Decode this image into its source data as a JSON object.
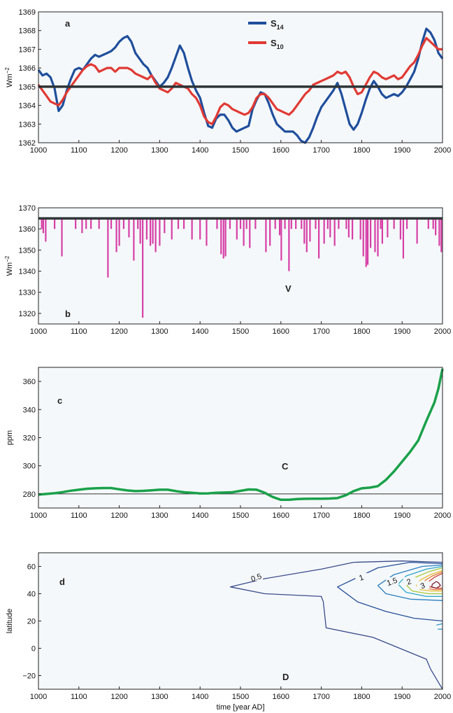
{
  "chart_data": [
    {
      "type": "line",
      "panel_label": "a",
      "ylabel_base": "Wm",
      "ylabel_exp": "−2",
      "xlim": [
        1000,
        2000
      ],
      "ylim": [
        1362,
        1369
      ],
      "xticks": [
        "1000",
        "1100",
        "1200",
        "1300",
        "1400",
        "1500",
        "1600",
        "1700",
        "1800",
        "1900",
        "2000"
      ],
      "yticks": [
        "1362",
        "1363",
        "1364",
        "1365",
        "1366",
        "1367",
        "1368",
        "1369"
      ],
      "hline": 1365,
      "legend_placement": "top-center",
      "series": [
        {
          "name": "S",
          "name_sub": "14",
          "color": "#1f4e9c",
          "x": [
            1000,
            1010,
            1020,
            1030,
            1040,
            1050,
            1060,
            1070,
            1080,
            1090,
            1100,
            1110,
            1120,
            1130,
            1140,
            1150,
            1160,
            1170,
            1180,
            1190,
            1200,
            1210,
            1220,
            1230,
            1240,
            1250,
            1260,
            1270,
            1280,
            1290,
            1300,
            1310,
            1320,
            1330,
            1340,
            1350,
            1360,
            1370,
            1380,
            1390,
            1400,
            1410,
            1420,
            1430,
            1440,
            1450,
            1460,
            1470,
            1480,
            1490,
            1500,
            1510,
            1520,
            1530,
            1540,
            1550,
            1560,
            1570,
            1580,
            1590,
            1600,
            1610,
            1620,
            1630,
            1640,
            1650,
            1660,
            1670,
            1680,
            1690,
            1700,
            1710,
            1720,
            1730,
            1740,
            1750,
            1760,
            1770,
            1780,
            1790,
            1800,
            1810,
            1820,
            1830,
            1840,
            1850,
            1860,
            1870,
            1880,
            1890,
            1900,
            1910,
            1920,
            1930,
            1940,
            1950,
            1960,
            1970,
            1980,
            1990,
            2000
          ],
          "y": [
            1365.9,
            1365.6,
            1365.7,
            1365.5,
            1364.9,
            1363.7,
            1364.0,
            1364.8,
            1365.4,
            1365.9,
            1366.0,
            1365.9,
            1366.2,
            1366.5,
            1366.7,
            1366.6,
            1366.7,
            1366.8,
            1366.9,
            1367.1,
            1367.4,
            1367.6,
            1367.7,
            1367.4,
            1366.8,
            1366.5,
            1366.2,
            1366.0,
            1365.6,
            1365.3,
            1365.0,
            1365.2,
            1365.5,
            1366.0,
            1366.6,
            1367.2,
            1366.8,
            1366.0,
            1365.3,
            1364.8,
            1364.4,
            1363.6,
            1362.9,
            1362.8,
            1363.3,
            1363.5,
            1363.5,
            1363.2,
            1362.8,
            1362.6,
            1362.7,
            1362.8,
            1362.9,
            1363.8,
            1364.3,
            1364.7,
            1364.6,
            1364.1,
            1363.5,
            1363.0,
            1362.8,
            1362.6,
            1362.6,
            1362.6,
            1362.4,
            1362.1,
            1362.0,
            1362.3,
            1362.8,
            1363.4,
            1363.9,
            1364.2,
            1364.5,
            1364.8,
            1365.2,
            1364.6,
            1363.8,
            1363.0,
            1362.7,
            1363.0,
            1363.6,
            1364.3,
            1364.9,
            1365.3,
            1365.0,
            1364.6,
            1364.4,
            1364.5,
            1364.6,
            1364.5,
            1364.7,
            1365.0,
            1365.4,
            1365.8,
            1366.5,
            1367.4,
            1368.1,
            1367.9,
            1367.5,
            1366.8,
            1366.5
          ]
        },
        {
          "name": "S",
          "name_sub": "10",
          "color": "#e03a34",
          "x": [
            1000,
            1010,
            1020,
            1030,
            1040,
            1050,
            1060,
            1070,
            1080,
            1090,
            1100,
            1110,
            1120,
            1130,
            1140,
            1150,
            1160,
            1170,
            1180,
            1190,
            1200,
            1210,
            1220,
            1230,
            1240,
            1250,
            1260,
            1270,
            1280,
            1290,
            1300,
            1310,
            1320,
            1330,
            1340,
            1350,
            1360,
            1370,
            1380,
            1390,
            1400,
            1410,
            1420,
            1430,
            1440,
            1450,
            1460,
            1470,
            1480,
            1490,
            1500,
            1510,
            1520,
            1530,
            1540,
            1550,
            1560,
            1570,
            1580,
            1590,
            1600,
            1610,
            1620,
            1630,
            1640,
            1650,
            1660,
            1670,
            1680,
            1690,
            1700,
            1710,
            1720,
            1730,
            1740,
            1750,
            1760,
            1770,
            1780,
            1790,
            1800,
            1810,
            1820,
            1830,
            1840,
            1850,
            1860,
            1870,
            1880,
            1890,
            1900,
            1910,
            1920,
            1930,
            1940,
            1950,
            1960,
            1970,
            1980,
            1990,
            2000
          ],
          "y": [
            1365.1,
            1364.8,
            1364.5,
            1364.2,
            1364.1,
            1364.0,
            1364.3,
            1364.7,
            1365.0,
            1365.3,
            1365.6,
            1365.9,
            1366.1,
            1366.2,
            1366.1,
            1365.8,
            1365.9,
            1366.0,
            1366.0,
            1365.8,
            1366.0,
            1366.0,
            1366.0,
            1365.9,
            1365.7,
            1365.6,
            1365.5,
            1365.4,
            1365.6,
            1365.2,
            1364.9,
            1364.8,
            1364.7,
            1364.9,
            1365.2,
            1365.1,
            1365.0,
            1364.9,
            1364.6,
            1364.4,
            1364.0,
            1363.4,
            1363.1,
            1363.0,
            1363.4,
            1363.9,
            1364.1,
            1364.0,
            1363.8,
            1363.7,
            1363.6,
            1363.5,
            1363.6,
            1363.9,
            1364.4,
            1364.6,
            1364.6,
            1364.4,
            1364.1,
            1363.8,
            1363.7,
            1363.6,
            1363.5,
            1363.7,
            1364.0,
            1364.3,
            1364.6,
            1364.8,
            1365.1,
            1365.2,
            1365.3,
            1365.4,
            1365.5,
            1365.6,
            1365.8,
            1365.7,
            1365.8,
            1365.5,
            1365.0,
            1364.6,
            1364.7,
            1365.1,
            1365.5,
            1365.8,
            1365.7,
            1365.5,
            1365.4,
            1365.5,
            1365.6,
            1365.4,
            1365.5,
            1365.8,
            1366.1,
            1366.3,
            1366.7,
            1367.2,
            1367.6,
            1367.4,
            1367.2,
            1367.0,
            1367.0
          ]
        }
      ]
    },
    {
      "type": "bar",
      "panel_label": "b",
      "annotation": "V",
      "ylabel_base": "Wm",
      "ylabel_exp": "−2",
      "xlim": [
        1000,
        2000
      ],
      "ylim": [
        1315,
        1370
      ],
      "xticks": [
        "1000",
        "1100",
        "1200",
        "1300",
        "1400",
        "1500",
        "1600",
        "1700",
        "1800",
        "1900",
        "2000"
      ],
      "yticks": [
        "1320",
        "1330",
        "1340",
        "1350",
        "1360",
        "1370"
      ],
      "baseline": 1365,
      "color": "#d63fa6",
      "x": [
        1008,
        1012,
        1018,
        1040,
        1058,
        1092,
        1108,
        1118,
        1130,
        1150,
        1172,
        1180,
        1193,
        1200,
        1211,
        1224,
        1236,
        1246,
        1252,
        1258,
        1268,
        1277,
        1283,
        1290,
        1300,
        1312,
        1330,
        1346,
        1360,
        1380,
        1400,
        1416,
        1442,
        1452,
        1458,
        1463,
        1474,
        1491,
        1500,
        1508,
        1515,
        1523,
        1537,
        1563,
        1573,
        1586,
        1597,
        1601,
        1610,
        1620,
        1626,
        1637,
        1651,
        1658,
        1664,
        1672,
        1686,
        1694,
        1707,
        1716,
        1722,
        1733,
        1743,
        1762,
        1768,
        1777,
        1797,
        1804,
        1811,
        1815,
        1822,
        1833,
        1840,
        1847,
        1851,
        1864,
        1880,
        1896,
        1903,
        1912,
        1937,
        1965,
        1977,
        1983,
        1992,
        1997
      ],
      "y": [
        1360,
        1358,
        1354,
        1360,
        1347,
        1360,
        1358,
        1360,
        1360,
        1360,
        1337,
        1360,
        1349,
        1352,
        1360,
        1356,
        1345,
        1360,
        1353,
        1318,
        1355,
        1352,
        1353,
        1349,
        1352,
        1358,
        1355,
        1360,
        1360,
        1355,
        1355,
        1352,
        1360,
        1348,
        1346,
        1347,
        1360,
        1355,
        1360,
        1352,
        1360,
        1351,
        1360,
        1349,
        1352,
        1360,
        1357,
        1345,
        1360,
        1340,
        1360,
        1360,
        1360,
        1353,
        1349,
        1354,
        1360,
        1346,
        1353,
        1360,
        1356,
        1352,
        1360,
        1360,
        1356,
        1355,
        1355,
        1347,
        1342,
        1343,
        1351,
        1349,
        1347,
        1360,
        1353,
        1356,
        1360,
        1355,
        1346,
        1360,
        1353,
        1360,
        1360,
        1357,
        1352,
        1349
      ]
    },
    {
      "type": "line",
      "panel_label": "c",
      "annotation": "C",
      "ylabel": "ppm",
      "xlim": [
        1000,
        2000
      ],
      "ylim": [
        270,
        370
      ],
      "xticks": [
        "1000",
        "1100",
        "1200",
        "1300",
        "1400",
        "1500",
        "1600",
        "1700",
        "1800",
        "1900",
        "2000"
      ],
      "yticks": [
        "280",
        "300",
        "320",
        "340",
        "360"
      ],
      "hline": 280,
      "color": "#1aa14a",
      "x": [
        1000,
        1020,
        1040,
        1060,
        1080,
        1100,
        1120,
        1140,
        1160,
        1180,
        1200,
        1220,
        1240,
        1260,
        1280,
        1300,
        1320,
        1340,
        1360,
        1380,
        1400,
        1420,
        1440,
        1460,
        1480,
        1500,
        1520,
        1540,
        1560,
        1580,
        1600,
        1620,
        1640,
        1660,
        1680,
        1700,
        1720,
        1740,
        1760,
        1780,
        1800,
        1820,
        1840,
        1860,
        1880,
        1900,
        1920,
        1940,
        1960,
        1980,
        1990,
        2000
      ],
      "y": [
        279.5,
        280.0,
        280.5,
        281.3,
        282.3,
        283.0,
        283.7,
        284.0,
        284.2,
        284.2,
        283.3,
        282.5,
        282.0,
        282.2,
        282.6,
        283.0,
        283.0,
        282.0,
        281.2,
        280.8,
        280.3,
        280.4,
        280.8,
        281.0,
        281.2,
        282.2,
        283.2,
        283.0,
        280.8,
        277.8,
        275.8,
        275.8,
        276.3,
        276.5,
        276.6,
        276.6,
        276.7,
        277.0,
        279.0,
        282.0,
        284.0,
        284.5,
        285.5,
        290.0,
        296.0,
        303.0,
        310.0,
        318.0,
        332.0,
        345.0,
        355.0,
        369.0
      ]
    },
    {
      "type": "contour",
      "panel_label": "d",
      "annotation": "D",
      "xlabel": "time [year AD]",
      "ylabel": "latitude",
      "xlim": [
        1000,
        2000
      ],
      "ylim": [
        -30,
        70
      ],
      "xticks": [
        "1000",
        "1100",
        "1200",
        "1300",
        "1400",
        "1500",
        "1600",
        "1700",
        "1800",
        "1900",
        "2000"
      ],
      "yticks": [
        "−20",
        "0",
        "20",
        "40",
        "60"
      ],
      "contours": [
        {
          "level": 0.5,
          "label": "0.5",
          "color": "#3a4b8c",
          "x": [
            2000,
            1900,
            1780,
            1700,
            1560,
            1475,
            1560,
            1700,
            1705,
            1712,
            1828,
            1960,
            1970,
            1990,
            2000
          ],
          "y": [
            63,
            64,
            63,
            58,
            51,
            45,
            40,
            38,
            34,
            15,
            8,
            -8,
            -15,
            -25,
            -30
          ]
        },
        {
          "level": 1.0,
          "label": "1",
          "color": "#27509a",
          "x": [
            2000,
            1920,
            1840,
            1740,
            1790,
            1860,
            1930,
            2000
          ],
          "y": [
            62,
            63,
            59,
            45,
            34,
            27,
            22,
            20
          ]
        },
        {
          "level": 1.5,
          "label": "1.5",
          "color": "#2a7fc0",
          "x": [
            2000,
            1950,
            1880,
            1840,
            1860,
            1920,
            2000
          ],
          "y": [
            61,
            60,
            54,
            46,
            40,
            36,
            35
          ]
        },
        {
          "level": 2.0,
          "label": "2",
          "color": "#2aa8c8",
          "x": [
            2000,
            1960,
            1910,
            1890,
            1910,
            1960,
            2000
          ],
          "y": [
            60,
            58,
            53,
            47,
            41,
            38,
            38
          ]
        },
        {
          "level": 2.5,
          "label": "",
          "color": "#a8c838",
          "x": [
            2000,
            1965,
            1925,
            1912,
            1925,
            1965,
            2000
          ],
          "y": [
            59,
            56,
            51,
            46,
            42,
            40,
            40
          ]
        },
        {
          "level": 3.0,
          "label": "3",
          "color": "#e8c030",
          "x": [
            2000,
            1970,
            1945,
            1935,
            1945,
            1972,
            2000
          ],
          "y": [
            57,
            54,
            50,
            46,
            43,
            42,
            42
          ]
        },
        {
          "level": 3.5,
          "label": "",
          "color": "#e87a30",
          "x": [
            2000,
            1975,
            1958,
            1952,
            1960,
            1978,
            2000
          ],
          "y": [
            56,
            53,
            50,
            46,
            44,
            43,
            43
          ]
        },
        {
          "level": 4.0,
          "label": "",
          "color": "#d03a30",
          "x": [
            2000,
            1980,
            1966,
            1962,
            1970,
            1985,
            2000
          ],
          "y": [
            55,
            52,
            49,
            46,
            45,
            44,
            44
          ]
        },
        {
          "level": 4.5,
          "label": "",
          "color": "#8a2030",
          "x": [
            1985,
            1975,
            1973,
            1985,
            1995,
            1990,
            1985
          ],
          "y": [
            49,
            47,
            45,
            44,
            46,
            48,
            49
          ]
        },
        {
          "level": 0.8,
          "label": "",
          "color": "#2a9ac8",
          "x": [
            1985,
            2000
          ],
          "y": [
            17,
            18
          ]
        },
        {
          "level": 0.8,
          "label": "",
          "color": "#2a9ac8",
          "x": [
            1988,
            2000
          ],
          "y": [
            14,
            14
          ]
        }
      ]
    }
  ]
}
